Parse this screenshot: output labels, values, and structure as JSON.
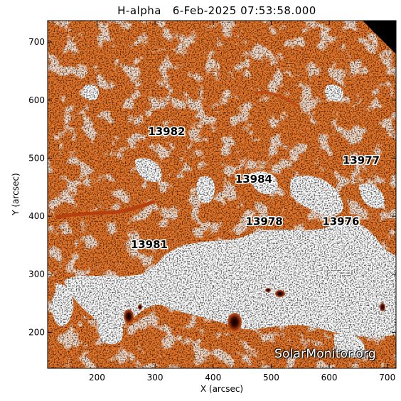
{
  "title": "H-alpha   6-Feb-2025 07:53:58.000",
  "x_axis": {
    "label": "X (arcsec)",
    "range": [
      115,
      715
    ],
    "ticks": [
      200,
      300,
      400,
      500,
      600,
      700
    ]
  },
  "y_axis": {
    "label": "Y (arcsec)",
    "range": [
      138,
      737
    ],
    "ticks": [
      200,
      300,
      400,
      500,
      600,
      700
    ]
  },
  "colors": {
    "background": "#e8772a",
    "bright": "#ffffff",
    "dark": "#000000",
    "sunspot": "#5a1000",
    "filament": "#b84010"
  },
  "active_regions": [
    {
      "number": "13982",
      "x": 320,
      "y": 540
    },
    {
      "number": "13977",
      "x": 655,
      "y": 490
    },
    {
      "number": "13984",
      "x": 470,
      "y": 458
    },
    {
      "number": "13978",
      "x": 488,
      "y": 385
    },
    {
      "number": "13976",
      "x": 620,
      "y": 385
    },
    {
      "number": "13981",
      "x": 290,
      "y": 345
    }
  ],
  "watermark": "SolarMonitor.org"
}
